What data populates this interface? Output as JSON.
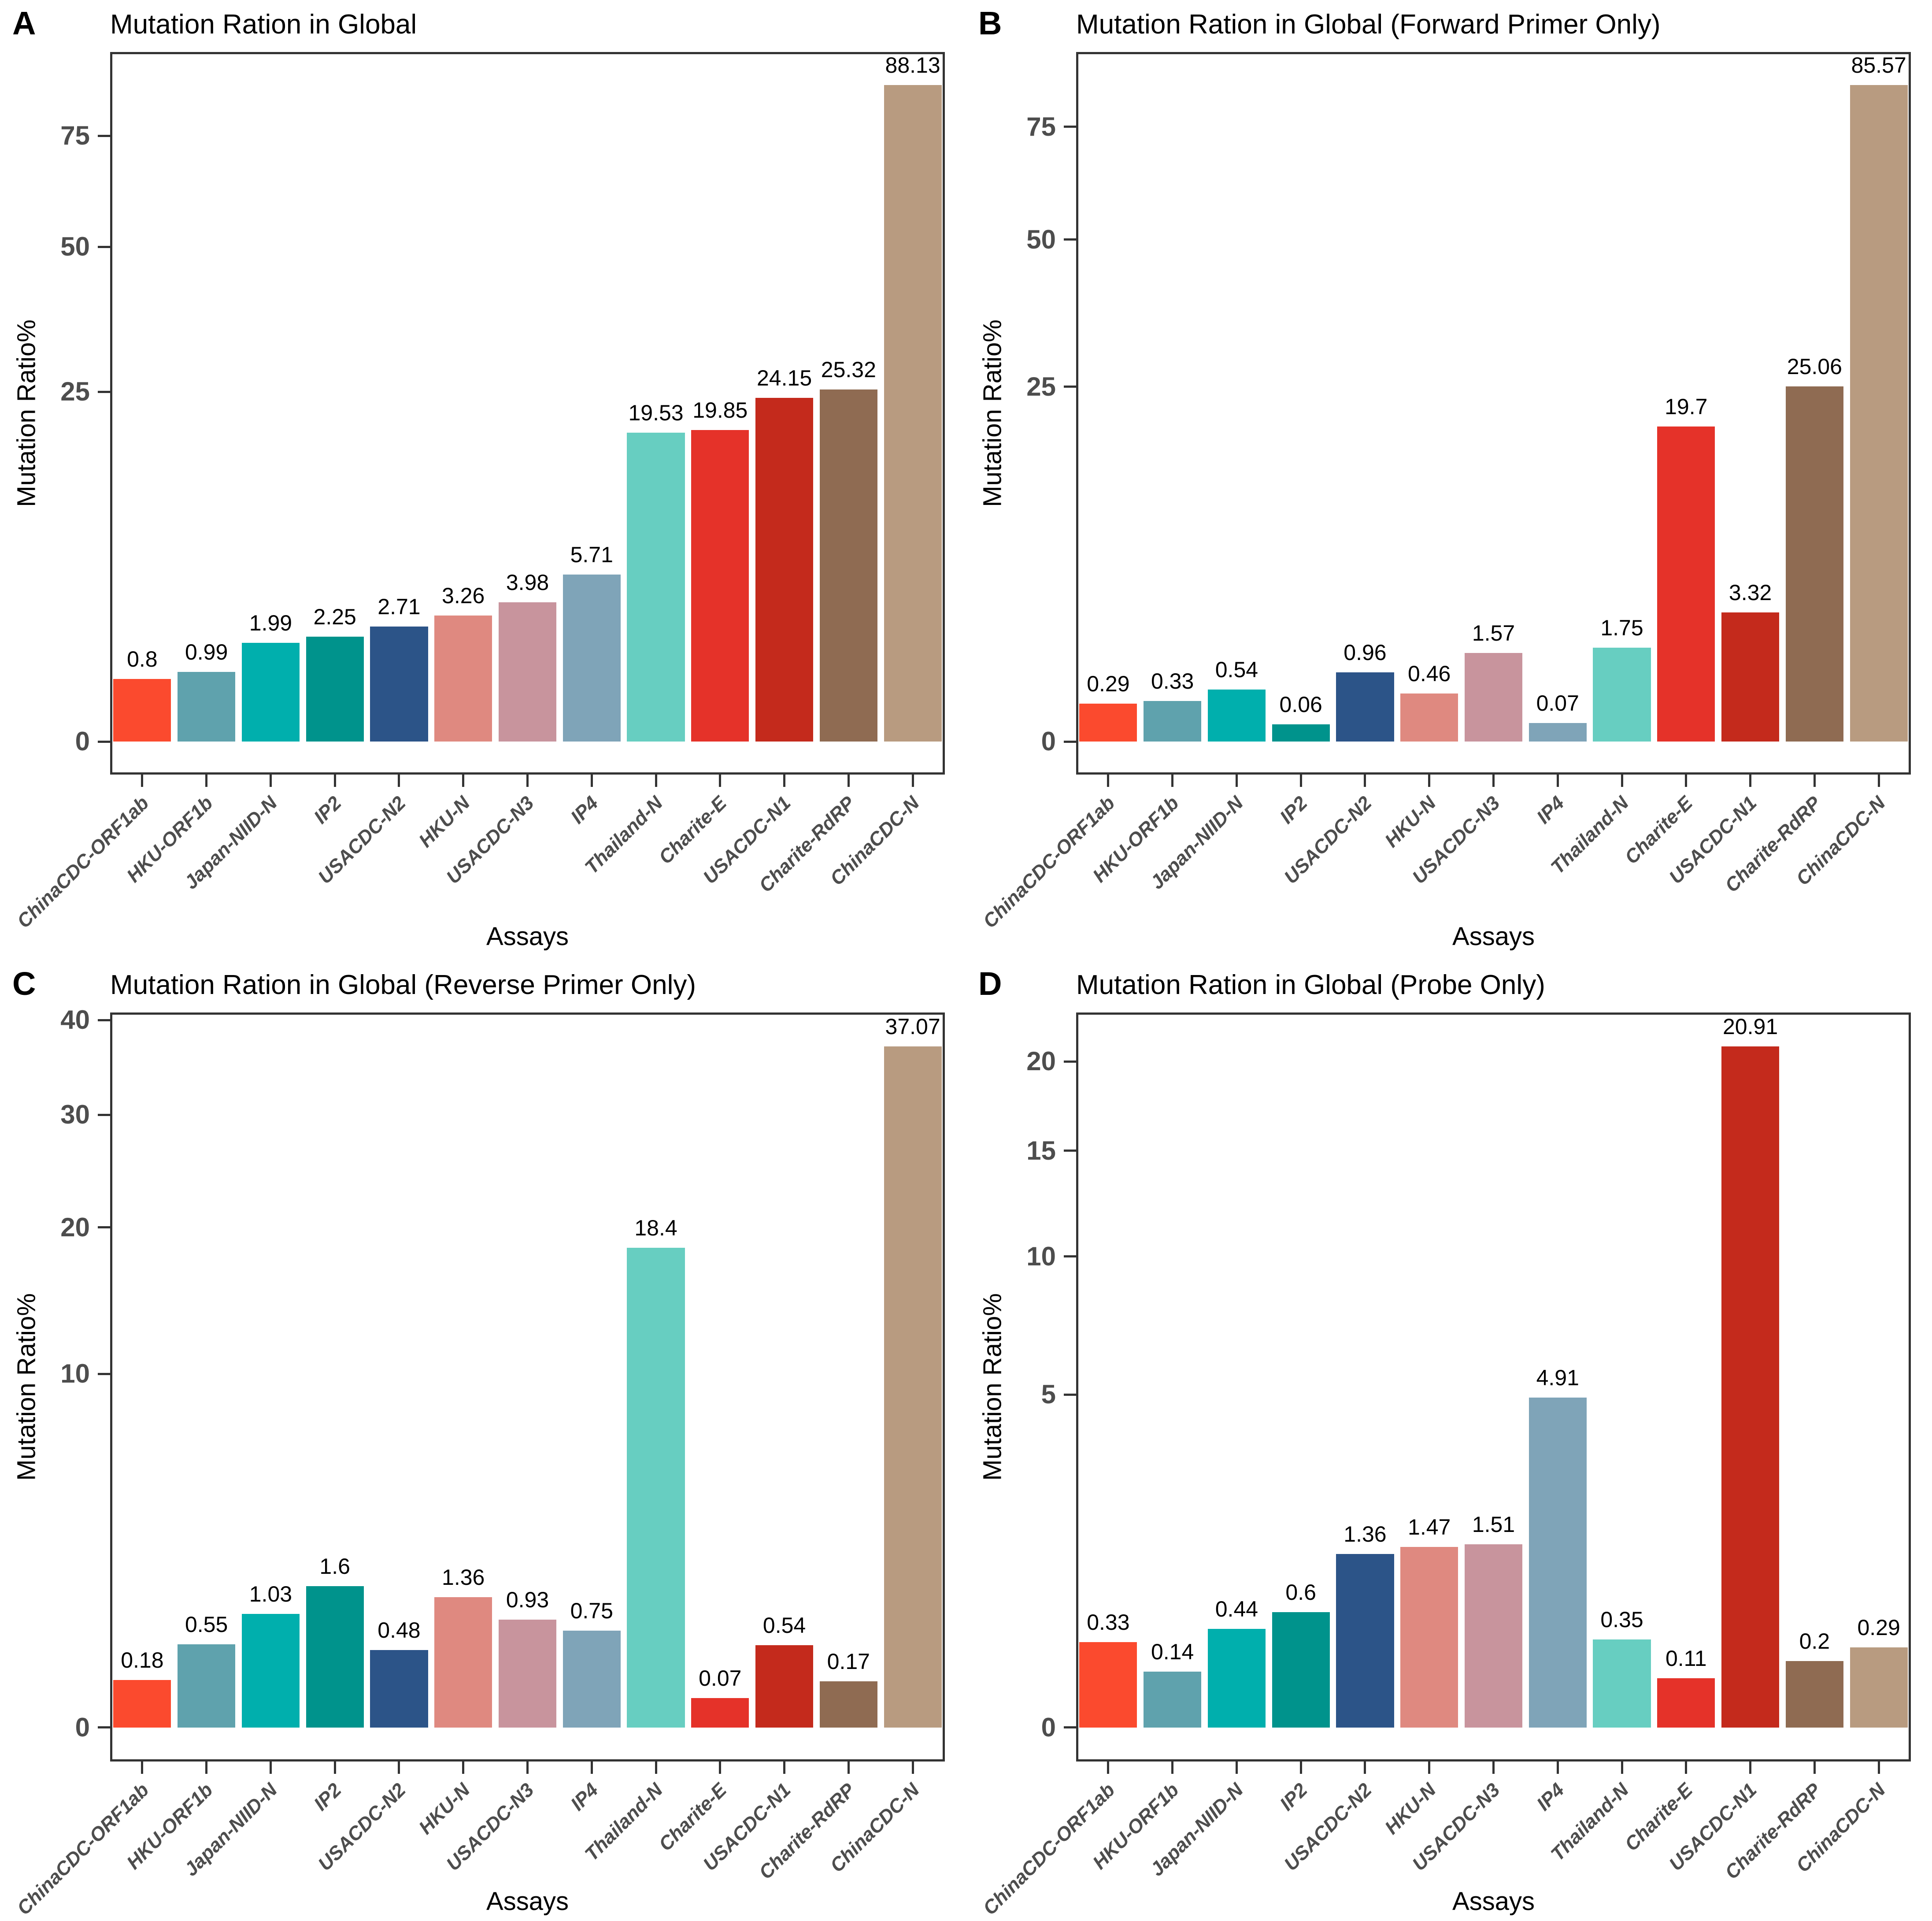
{
  "styles": {
    "background": "#ffffff",
    "axis_color": "#333333",
    "panel_border_color": "#333333",
    "tick_label_color": "#4d4d4d",
    "title_color": "#000000",
    "bar_colors": [
      "#FB4A2E",
      "#5FA2AD",
      "#00AFAD",
      "#00938C",
      "#2C5488",
      "#DF8980",
      "#C8949D",
      "#7FA4B8",
      "#67CEC1",
      "#E53229",
      "#C42A1C",
      "#8F6B52",
      "#B89B80"
    ]
  },
  "chart_data": [
    {
      "id": "A",
      "type": "bar",
      "title": "Mutation Ration in Global",
      "xlabel": "Assays",
      "ylabel": "Mutation Ratio%",
      "yscale": "sqrt",
      "yticks": [
        0,
        25,
        50,
        75
      ],
      "grid": false,
      "legend": "none",
      "categories": [
        "ChinaCDC-ORF1ab",
        "HKU-ORF1b",
        "Japan-NIID-N",
        "IP2",
        "USACDC-N2",
        "HKU-N",
        "USACDC-N3",
        "IP4",
        "Thailand-N",
        "Charite-E",
        "USACDC-N1",
        "Charite-RdRP",
        "ChinaCDC-N"
      ],
      "values": [
        0.8,
        0.99,
        1.99,
        2.25,
        2.71,
        3.26,
        3.98,
        5.71,
        19.53,
        19.85,
        24.15,
        25.32,
        88.13
      ],
      "value_labels": [
        "0.8",
        "0.99",
        "1.99",
        "2.25",
        "2.71",
        "3.26",
        "3.98",
        "5.71",
        "19.53",
        "19.85",
        "24.15",
        "25.32",
        "88.13"
      ]
    },
    {
      "id": "B",
      "type": "bar",
      "title": "Mutation Ration in Global (Forward Primer Only)",
      "xlabel": "Assays",
      "ylabel": "Mutation Ratio%",
      "yscale": "sqrt",
      "yticks": [
        0,
        25,
        50,
        75
      ],
      "grid": false,
      "legend": "none",
      "categories": [
        "ChinaCDC-ORF1ab",
        "HKU-ORF1b",
        "Japan-NIID-N",
        "IP2",
        "USACDC-N2",
        "HKU-N",
        "USACDC-N3",
        "IP4",
        "Thailand-N",
        "Charite-E",
        "USACDC-N1",
        "Charite-RdRP",
        "ChinaCDC-N"
      ],
      "values": [
        0.29,
        0.33,
        0.54,
        0.06,
        0.96,
        0.46,
        1.57,
        0.07,
        1.75,
        19.7,
        3.32,
        25.06,
        85.57
      ],
      "value_labels": [
        "0.29",
        "0.33",
        "0.54",
        "0.06",
        "0.96",
        "0.46",
        "1.57",
        "0.07",
        "1.75",
        "19.7",
        "3.32",
        "25.06",
        "85.57"
      ]
    },
    {
      "id": "C",
      "type": "bar",
      "title": "Mutation Ration in Global (Reverse Primer Only)",
      "xlabel": "Assays",
      "ylabel": "Mutation Ratio%",
      "yscale": "sqrt",
      "yticks": [
        0,
        10,
        20,
        30,
        40
      ],
      "grid": false,
      "legend": "none",
      "categories": [
        "ChinaCDC-ORF1ab",
        "HKU-ORF1b",
        "Japan-NIID-N",
        "IP2",
        "USACDC-N2",
        "HKU-N",
        "USACDC-N3",
        "IP4",
        "Thailand-N",
        "Charite-E",
        "USACDC-N1",
        "Charite-RdRP",
        "ChinaCDC-N"
      ],
      "values": [
        0.18,
        0.55,
        1.03,
        1.6,
        0.48,
        1.36,
        0.93,
        0.75,
        18.4,
        0.07,
        0.54,
        0.17,
        37.07
      ],
      "value_labels": [
        "0.18",
        "0.55",
        "1.03",
        "1.6",
        "0.48",
        "1.36",
        "0.93",
        "0.75",
        "18.4",
        "0.07",
        "0.54",
        "0.17",
        "37.07"
      ]
    },
    {
      "id": "D",
      "type": "bar",
      "title": "Mutation Ration in Global (Probe Only)",
      "xlabel": "Assays",
      "ylabel": "Mutation Ratio%",
      "yscale": "sqrt",
      "yticks": [
        0,
        5,
        10,
        15,
        20
      ],
      "grid": false,
      "legend": "none",
      "categories": [
        "ChinaCDC-ORF1ab",
        "HKU-ORF1b",
        "Japan-NIID-N",
        "IP2",
        "USACDC-N2",
        "HKU-N",
        "USACDC-N3",
        "IP4",
        "Thailand-N",
        "Charite-E",
        "USACDC-N1",
        "Charite-RdRP",
        "ChinaCDC-N"
      ],
      "values": [
        0.33,
        0.14,
        0.44,
        0.6,
        1.36,
        1.47,
        1.51,
        4.91,
        0.35,
        0.11,
        20.91,
        0.2,
        0.29
      ],
      "value_labels": [
        "0.33",
        "0.14",
        "0.44",
        "0.6",
        "1.36",
        "1.47",
        "1.51",
        "4.91",
        "0.35",
        "0.11",
        "20.91",
        "0.2",
        "0.29"
      ]
    }
  ]
}
